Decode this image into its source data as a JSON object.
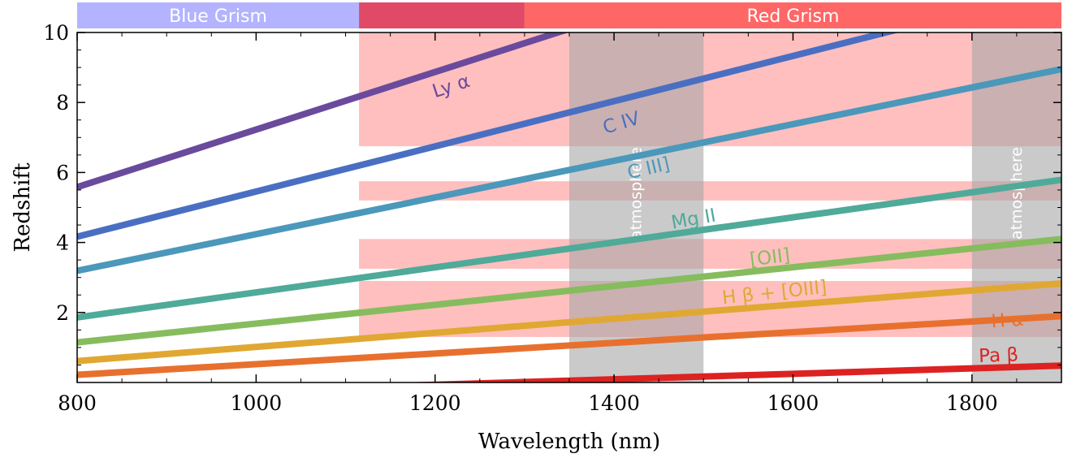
{
  "chart_data": {
    "type": "line",
    "title": "",
    "xlabel": "Wavelength (nm)",
    "ylabel": "Redshift",
    "xlim": [
      800,
      1900
    ],
    "ylim": [
      0,
      10
    ],
    "xticks": [
      800,
      1000,
      1200,
      1400,
      1600,
      1800
    ],
    "yticks": [
      2,
      4,
      6,
      8,
      10
    ],
    "grid": false,
    "grisms": [
      {
        "name": "Blue Grism",
        "range": [
          800,
          1115
        ],
        "color": "#b3b3ff"
      },
      {
        "name": "",
        "range": [
          1115,
          1300
        ],
        "color": "#e04a66"
      },
      {
        "name": "Red Grism",
        "range": [
          1300,
          1900
        ],
        "color": "#ff6666"
      }
    ],
    "atmosphere_bands": [
      {
        "label": "atmosphere",
        "range": [
          1350,
          1500
        ]
      },
      {
        "label": "atmosphere",
        "range": [
          1800,
          1900
        ]
      }
    ],
    "coverage_bands": [
      {
        "x": [
          1115,
          1900
        ],
        "z": [
          6.75,
          10
        ]
      },
      {
        "x": [
          1115,
          1900
        ],
        "z": [
          5.2,
          5.75
        ]
      },
      {
        "x": [
          1115,
          1900
        ],
        "z": [
          3.25,
          4.1
        ]
      },
      {
        "x": [
          1115,
          1900
        ],
        "z": [
          1.3,
          2.9
        ]
      }
    ],
    "series": [
      {
        "name": "Ly α",
        "rest_nm": 121.567,
        "color": "#6a4a9c",
        "label_at": [
          1220,
          8.3
        ],
        "angle": -18
      },
      {
        "name": "C IV",
        "rest_nm": 154.9,
        "color": "#4a6fc2",
        "label_at": [
          1410,
          7.25
        ],
        "angle": -16
      },
      {
        "name": "C III]",
        "rest_nm": 190.9,
        "color": "#4b98bb",
        "label_at": [
          1440,
          5.95
        ],
        "angle": -13
      },
      {
        "name": "Mg II",
        "rest_nm": 279.8,
        "color": "#4faa99",
        "label_at": [
          1490,
          4.5
        ],
        "angle": -10
      },
      {
        "name": "[OII]",
        "rest_nm": 372.7,
        "color": "#86bc5e",
        "label_at": [
          1575,
          3.4
        ],
        "angle": -7
      },
      {
        "name": "H β + [OIII]",
        "rest_nm": 496.0,
        "color": "#e0a832",
        "label_at": [
          1580,
          2.4
        ],
        "angle": -6
      },
      {
        "name": "H α",
        "rest_nm": 656.3,
        "color": "#e8702e",
        "label_at": [
          1840,
          1.6
        ],
        "angle": -4
      },
      {
        "name": "Pa β",
        "rest_nm": 1282.0,
        "color": "#dd2222",
        "label_at": [
          1830,
          0.6
        ],
        "angle": -2
      }
    ]
  }
}
